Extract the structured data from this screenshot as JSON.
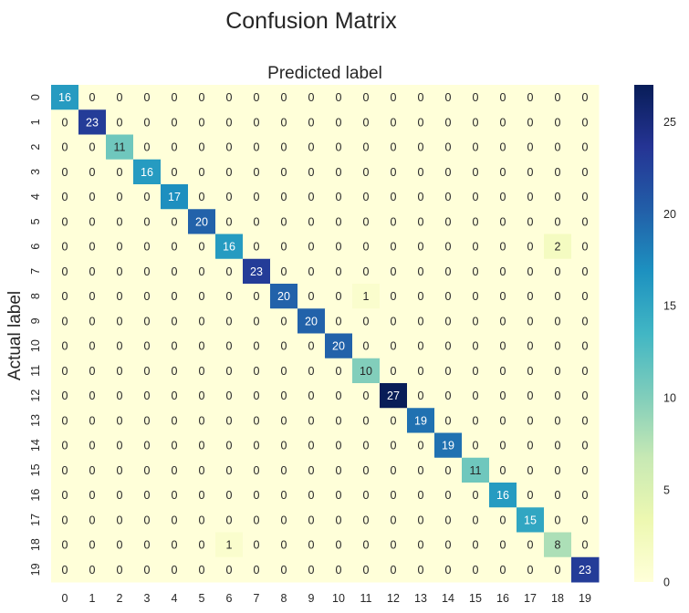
{
  "chart_data": {
    "type": "heatmap",
    "title": "Confusion Matrix",
    "xlabel": "Predicted label",
    "ylabel": "Actual label",
    "x_categories": [
      "0",
      "1",
      "2",
      "3",
      "4",
      "5",
      "6",
      "7",
      "8",
      "9",
      "10",
      "11",
      "12",
      "13",
      "14",
      "15",
      "16",
      "17",
      "18",
      "19"
    ],
    "y_categories": [
      "0",
      "1",
      "2",
      "3",
      "4",
      "5",
      "6",
      "7",
      "8",
      "9",
      "10",
      "11",
      "12",
      "13",
      "14",
      "15",
      "16",
      "17",
      "18",
      "19"
    ],
    "values": [
      [
        16,
        0,
        0,
        0,
        0,
        0,
        0,
        0,
        0,
        0,
        0,
        0,
        0,
        0,
        0,
        0,
        0,
        0,
        0,
        0
      ],
      [
        0,
        23,
        0,
        0,
        0,
        0,
        0,
        0,
        0,
        0,
        0,
        0,
        0,
        0,
        0,
        0,
        0,
        0,
        0,
        0
      ],
      [
        0,
        0,
        11,
        0,
        0,
        0,
        0,
        0,
        0,
        0,
        0,
        0,
        0,
        0,
        0,
        0,
        0,
        0,
        0,
        0
      ],
      [
        0,
        0,
        0,
        16,
        0,
        0,
        0,
        0,
        0,
        0,
        0,
        0,
        0,
        0,
        0,
        0,
        0,
        0,
        0,
        0
      ],
      [
        0,
        0,
        0,
        0,
        17,
        0,
        0,
        0,
        0,
        0,
        0,
        0,
        0,
        0,
        0,
        0,
        0,
        0,
        0,
        0
      ],
      [
        0,
        0,
        0,
        0,
        0,
        20,
        0,
        0,
        0,
        0,
        0,
        0,
        0,
        0,
        0,
        0,
        0,
        0,
        0,
        0
      ],
      [
        0,
        0,
        0,
        0,
        0,
        0,
        16,
        0,
        0,
        0,
        0,
        0,
        0,
        0,
        0,
        0,
        0,
        0,
        2,
        0
      ],
      [
        0,
        0,
        0,
        0,
        0,
        0,
        0,
        23,
        0,
        0,
        0,
        0,
        0,
        0,
        0,
        0,
        0,
        0,
        0,
        0
      ],
      [
        0,
        0,
        0,
        0,
        0,
        0,
        0,
        0,
        20,
        0,
        0,
        1,
        0,
        0,
        0,
        0,
        0,
        0,
        0,
        0
      ],
      [
        0,
        0,
        0,
        0,
        0,
        0,
        0,
        0,
        0,
        20,
        0,
        0,
        0,
        0,
        0,
        0,
        0,
        0,
        0,
        0
      ],
      [
        0,
        0,
        0,
        0,
        0,
        0,
        0,
        0,
        0,
        0,
        20,
        0,
        0,
        0,
        0,
        0,
        0,
        0,
        0,
        0
      ],
      [
        0,
        0,
        0,
        0,
        0,
        0,
        0,
        0,
        0,
        0,
        0,
        10,
        0,
        0,
        0,
        0,
        0,
        0,
        0,
        0
      ],
      [
        0,
        0,
        0,
        0,
        0,
        0,
        0,
        0,
        0,
        0,
        0,
        0,
        27,
        0,
        0,
        0,
        0,
        0,
        0,
        0
      ],
      [
        0,
        0,
        0,
        0,
        0,
        0,
        0,
        0,
        0,
        0,
        0,
        0,
        0,
        19,
        0,
        0,
        0,
        0,
        0,
        0
      ],
      [
        0,
        0,
        0,
        0,
        0,
        0,
        0,
        0,
        0,
        0,
        0,
        0,
        0,
        0,
        19,
        0,
        0,
        0,
        0,
        0
      ],
      [
        0,
        0,
        0,
        0,
        0,
        0,
        0,
        0,
        0,
        0,
        0,
        0,
        0,
        0,
        0,
        11,
        0,
        0,
        0,
        0
      ],
      [
        0,
        0,
        0,
        0,
        0,
        0,
        0,
        0,
        0,
        0,
        0,
        0,
        0,
        0,
        0,
        0,
        16,
        0,
        0,
        0
      ],
      [
        0,
        0,
        0,
        0,
        0,
        0,
        0,
        0,
        0,
        0,
        0,
        0,
        0,
        0,
        0,
        0,
        0,
        15,
        0,
        0
      ],
      [
        0,
        0,
        0,
        0,
        0,
        0,
        1,
        0,
        0,
        0,
        0,
        0,
        0,
        0,
        0,
        0,
        0,
        0,
        8,
        0
      ],
      [
        0,
        0,
        0,
        0,
        0,
        0,
        0,
        0,
        0,
        0,
        0,
        0,
        0,
        0,
        0,
        0,
        0,
        0,
        0,
        23
      ]
    ],
    "colormap": "YlGnBu",
    "vmin": 0,
    "vmax": 27,
    "colorbar_ticks": [
      0,
      5,
      10,
      15,
      20,
      25
    ],
    "annotations": true
  }
}
